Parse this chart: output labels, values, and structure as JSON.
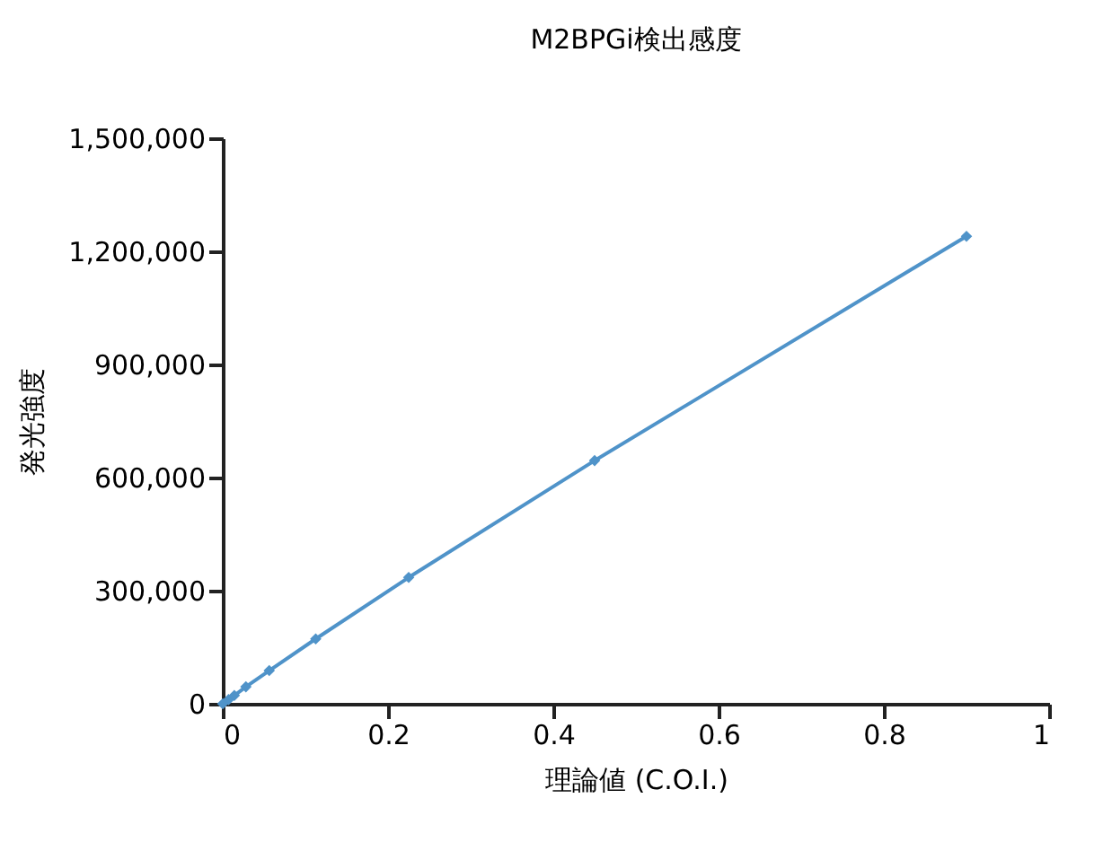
{
  "chart_data": {
    "type": "line",
    "title": "M2BPGi検出感度",
    "xlabel": "理論値 (C.O.I.)",
    "ylabel": "発光強度",
    "x": [
      0,
      0.007,
      0.014,
      0.028,
      0.05625,
      0.1125,
      0.225,
      0.45,
      0.9
    ],
    "series": [
      {
        "color": "#4f93c9",
        "values": [
          0,
          11000,
          22000,
          45000,
          88000,
          172000,
          335000,
          645000,
          1240000
        ]
      }
    ],
    "xlim": [
      0,
      1
    ],
    "xticks": [
      0,
      0.2,
      0.4,
      0.6,
      0.8,
      1
    ],
    "ylim": [
      0,
      1500000
    ],
    "yticks": [
      0,
      {
        "value": 300000,
        "label": "300,000"
      },
      {
        "value": 600000,
        "label": "600,000"
      },
      {
        "value": 900000,
        "label": "900,000"
      },
      {
        "value": 1200000,
        "label": "1,200,000"
      },
      {
        "value": 1500000,
        "label": "1,500,000"
      }
    ],
    "marker": "diamond",
    "grid": false,
    "legend": false
  }
}
